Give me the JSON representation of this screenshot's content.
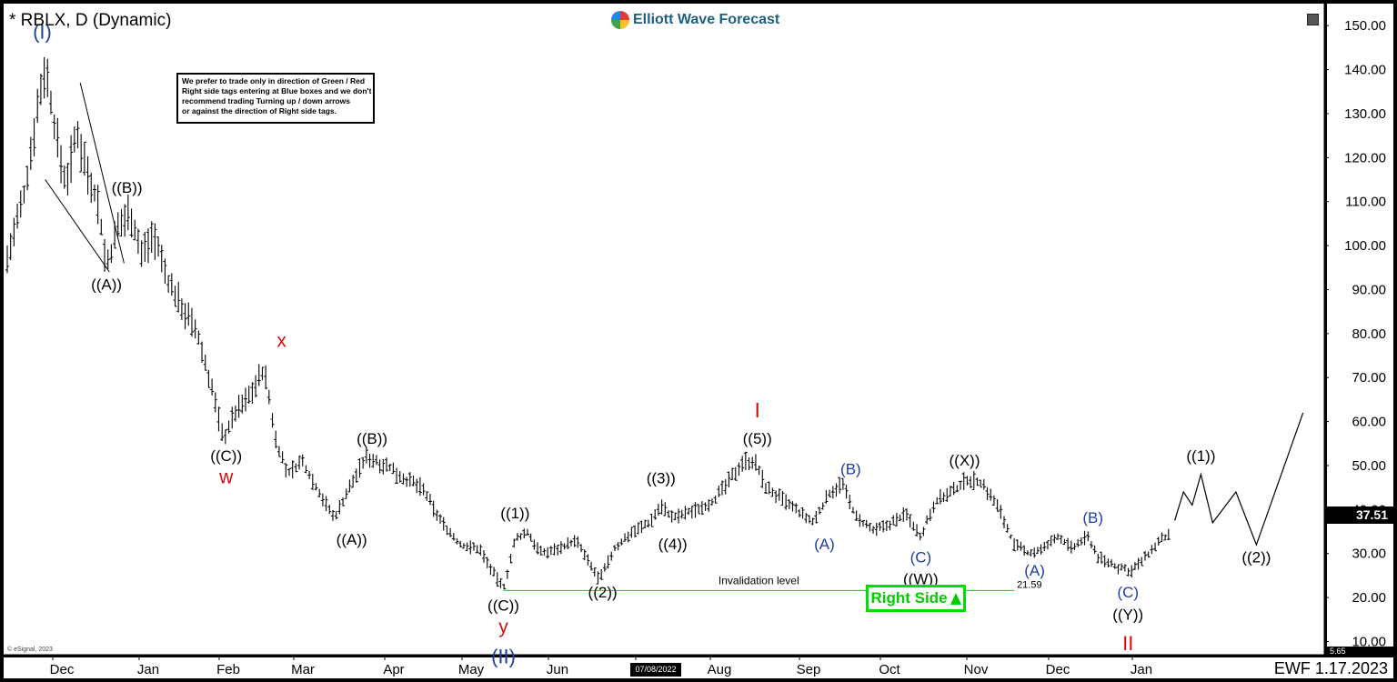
{
  "header": {
    "symbol_label": "* RBLX, D (Dynamic)",
    "brand": "Elliott Wave Forecast"
  },
  "note_lines": [
    "We prefer to trade only in direction of Green / Red",
    "Right side tags entering at Blue boxes and we don't",
    "recommend trading Turning up / down arrows",
    "or against the direction of Right side tags."
  ],
  "footer": {
    "tag": "EWF 1.17.2023",
    "copyright": "© eSignal, 2023",
    "date_badge": "07/08/2022"
  },
  "right_side_tag": {
    "label": "Right Side"
  },
  "price_tag": {
    "value": "37.51",
    "low": "5.65"
  },
  "colors": {
    "wave_blue": "#1f3fa0",
    "wave_red": "#d01010",
    "invalidation_green": "#33cc33",
    "price_bars": "#000000",
    "background": "#ffffff"
  },
  "chart_data": {
    "type": "ohlc",
    "x_axis_labels": [
      "Dec",
      "Jan",
      "Feb",
      "Mar",
      "Apr",
      "May",
      "Jun",
      "Jul",
      "Aug",
      "Sep",
      "Oct",
      "Nov",
      "Dec",
      "Jan"
    ],
    "y_ticks": [
      "150.00",
      "140.00",
      "130.00",
      "120.00",
      "110.00",
      "100.00",
      "90.00",
      "80.00",
      "70.00",
      "60.00",
      "50.00",
      "40.00",
      "30.00",
      "20.00",
      "10.00"
    ],
    "ylim": [
      7,
      155
    ],
    "invalidation": {
      "label": "Invalidation level",
      "value": 21.59,
      "value_label": "21.59"
    },
    "path": [
      {
        "t": 0,
        "p": 97
      },
      {
        "t": 6,
        "p": 112
      },
      {
        "t": 10,
        "p": 130
      },
      {
        "t": 13,
        "p": 141
      },
      {
        "t": 17,
        "p": 124
      },
      {
        "t": 20,
        "p": 114
      },
      {
        "t": 24,
        "p": 126
      },
      {
        "t": 27,
        "p": 118
      },
      {
        "t": 31,
        "p": 110
      },
      {
        "t": 34,
        "p": 95
      },
      {
        "t": 38,
        "p": 104
      },
      {
        "t": 42,
        "p": 108
      },
      {
        "t": 46,
        "p": 98
      },
      {
        "t": 50,
        "p": 103
      },
      {
        "t": 55,
        "p": 92
      },
      {
        "t": 60,
        "p": 86
      },
      {
        "t": 65,
        "p": 80
      },
      {
        "t": 70,
        "p": 68
      },
      {
        "t": 74,
        "p": 56
      },
      {
        "t": 78,
        "p": 62
      },
      {
        "t": 83,
        "p": 66
      },
      {
        "t": 88,
        "p": 72
      },
      {
        "t": 92,
        "p": 56
      },
      {
        "t": 96,
        "p": 48
      },
      {
        "t": 101,
        "p": 51
      },
      {
        "t": 106,
        "p": 45
      },
      {
        "t": 112,
        "p": 38
      },
      {
        "t": 118,
        "p": 46
      },
      {
        "t": 123,
        "p": 52
      },
      {
        "t": 130,
        "p": 50
      },
      {
        "t": 136,
        "p": 47
      },
      {
        "t": 142,
        "p": 45
      },
      {
        "t": 148,
        "p": 38
      },
      {
        "t": 155,
        "p": 32
      },
      {
        "t": 162,
        "p": 31
      },
      {
        "t": 167,
        "p": 25
      },
      {
        "t": 170,
        "p": 22
      },
      {
        "t": 174,
        "p": 33
      },
      {
        "t": 178,
        "p": 35
      },
      {
        "t": 183,
        "p": 30
      },
      {
        "t": 188,
        "p": 31
      },
      {
        "t": 195,
        "p": 33
      },
      {
        "t": 200,
        "p": 27
      },
      {
        "t": 203,
        "p": 24
      },
      {
        "t": 208,
        "p": 31
      },
      {
        "t": 214,
        "p": 35
      },
      {
        "t": 220,
        "p": 37
      },
      {
        "t": 224,
        "p": 41
      },
      {
        "t": 228,
        "p": 38
      },
      {
        "t": 236,
        "p": 40
      },
      {
        "t": 242,
        "p": 42
      },
      {
        "t": 248,
        "p": 47
      },
      {
        "t": 252,
        "p": 51
      },
      {
        "t": 256,
        "p": 51
      },
      {
        "t": 260,
        "p": 45
      },
      {
        "t": 266,
        "p": 42
      },
      {
        "t": 272,
        "p": 39
      },
      {
        "t": 276,
        "p": 37
      },
      {
        "t": 282,
        "p": 44
      },
      {
        "t": 286,
        "p": 46
      },
      {
        "t": 291,
        "p": 38
      },
      {
        "t": 297,
        "p": 35
      },
      {
        "t": 303,
        "p": 37
      },
      {
        "t": 308,
        "p": 39
      },
      {
        "t": 313,
        "p": 34
      },
      {
        "t": 318,
        "p": 42
      },
      {
        "t": 324,
        "p": 44
      },
      {
        "t": 329,
        "p": 47
      },
      {
        "t": 334,
        "p": 46
      },
      {
        "t": 340,
        "p": 40
      },
      {
        "t": 345,
        "p": 32
      },
      {
        "t": 350,
        "p": 30
      },
      {
        "t": 355,
        "p": 31
      },
      {
        "t": 360,
        "p": 34
      },
      {
        "t": 365,
        "p": 31
      },
      {
        "t": 370,
        "p": 34
      },
      {
        "t": 374,
        "p": 29
      },
      {
        "t": 380,
        "p": 27
      },
      {
        "t": 385,
        "p": 26
      },
      {
        "t": 390,
        "p": 29
      },
      {
        "t": 395,
        "p": 33
      },
      {
        "t": 398,
        "p": 34
      }
    ],
    "projection": [
      {
        "t": 400,
        "p": 37.5
      },
      {
        "t": 403,
        "p": 44
      },
      {
        "t": 406,
        "p": 41
      },
      {
        "t": 409,
        "p": 48
      },
      {
        "t": 413,
        "p": 37
      },
      {
        "t": 421,
        "p": 44
      },
      {
        "t": 428,
        "p": 32
      },
      {
        "t": 444,
        "p": 62
      }
    ],
    "wedge_lines": [
      {
        "t1": 13,
        "p1": 115,
        "t2": 35,
        "p2": 94
      },
      {
        "t1": 25,
        "p1": 137,
        "t2": 40,
        "p2": 96
      }
    ],
    "labels": [
      {
        "text": "(I)",
        "t": 12,
        "p": 147,
        "color": "blue",
        "size": 22
      },
      {
        "text": "((B))",
        "t": 41,
        "p": 112,
        "color": "black",
        "size": 17
      },
      {
        "text": "((A))",
        "t": 34,
        "p": 90,
        "color": "black",
        "size": 17
      },
      {
        "text": "x",
        "t": 94,
        "p": 77,
        "color": "red",
        "size": 21
      },
      {
        "text": "((C))",
        "t": 75,
        "p": 51,
        "color": "black",
        "size": 17
      },
      {
        "text": "w",
        "t": 75,
        "p": 46,
        "color": "red",
        "size": 21
      },
      {
        "text": "((B))",
        "t": 125,
        "p": 55,
        "color": "black",
        "size": 17
      },
      {
        "text": "((A))",
        "t": 118,
        "p": 32,
        "color": "black",
        "size": 17
      },
      {
        "text": "((1))",
        "t": 174,
        "p": 38,
        "color": "black",
        "size": 17
      },
      {
        "text": "((C))",
        "t": 170,
        "p": 17,
        "color": "black",
        "size": 17
      },
      {
        "text": "y",
        "t": 170,
        "p": 12,
        "color": "red",
        "size": 21
      },
      {
        "text": "(II)",
        "t": 170,
        "p": 5,
        "color": "blue",
        "size": 22
      },
      {
        "text": "((2))",
        "t": 204,
        "p": 20,
        "color": "black",
        "size": 17
      },
      {
        "text": "((3))",
        "t": 224,
        "p": 46,
        "color": "black",
        "size": 17
      },
      {
        "text": "((4))",
        "t": 228,
        "p": 31,
        "color": "black",
        "size": 17
      },
      {
        "text": "I",
        "t": 257,
        "p": 61,
        "color": "red",
        "size": 23
      },
      {
        "text": "((5))",
        "t": 257,
        "p": 55,
        "color": "black",
        "size": 17
      },
      {
        "text": "(B)",
        "t": 289,
        "p": 48,
        "color": "blue",
        "size": 17
      },
      {
        "text": "(A)",
        "t": 280,
        "p": 31,
        "color": "blue",
        "size": 17
      },
      {
        "text": "((X))",
        "t": 328,
        "p": 50,
        "color": "black",
        "size": 17
      },
      {
        "text": "(C)",
        "t": 313,
        "p": 28,
        "color": "blue",
        "size": 17
      },
      {
        "text": "((W))",
        "t": 313,
        "p": 23,
        "color": "black",
        "size": 17
      },
      {
        "text": "(A)",
        "t": 352,
        "p": 25,
        "color": "blue",
        "size": 17
      },
      {
        "text": "(B)",
        "t": 372,
        "p": 37,
        "color": "blue",
        "size": 17
      },
      {
        "text": "(C)",
        "t": 384,
        "p": 20,
        "color": "blue",
        "size": 17
      },
      {
        "text": "((Y))",
        "t": 384,
        "p": 15,
        "color": "black",
        "size": 17
      },
      {
        "text": "II",
        "t": 384,
        "p": 8,
        "color": "red",
        "size": 22
      },
      {
        "text": "((1))",
        "t": 409,
        "p": 51,
        "color": "black",
        "size": 17
      },
      {
        "text": "((2))",
        "t": 428,
        "p": 28,
        "color": "black",
        "size": 17
      }
    ]
  }
}
